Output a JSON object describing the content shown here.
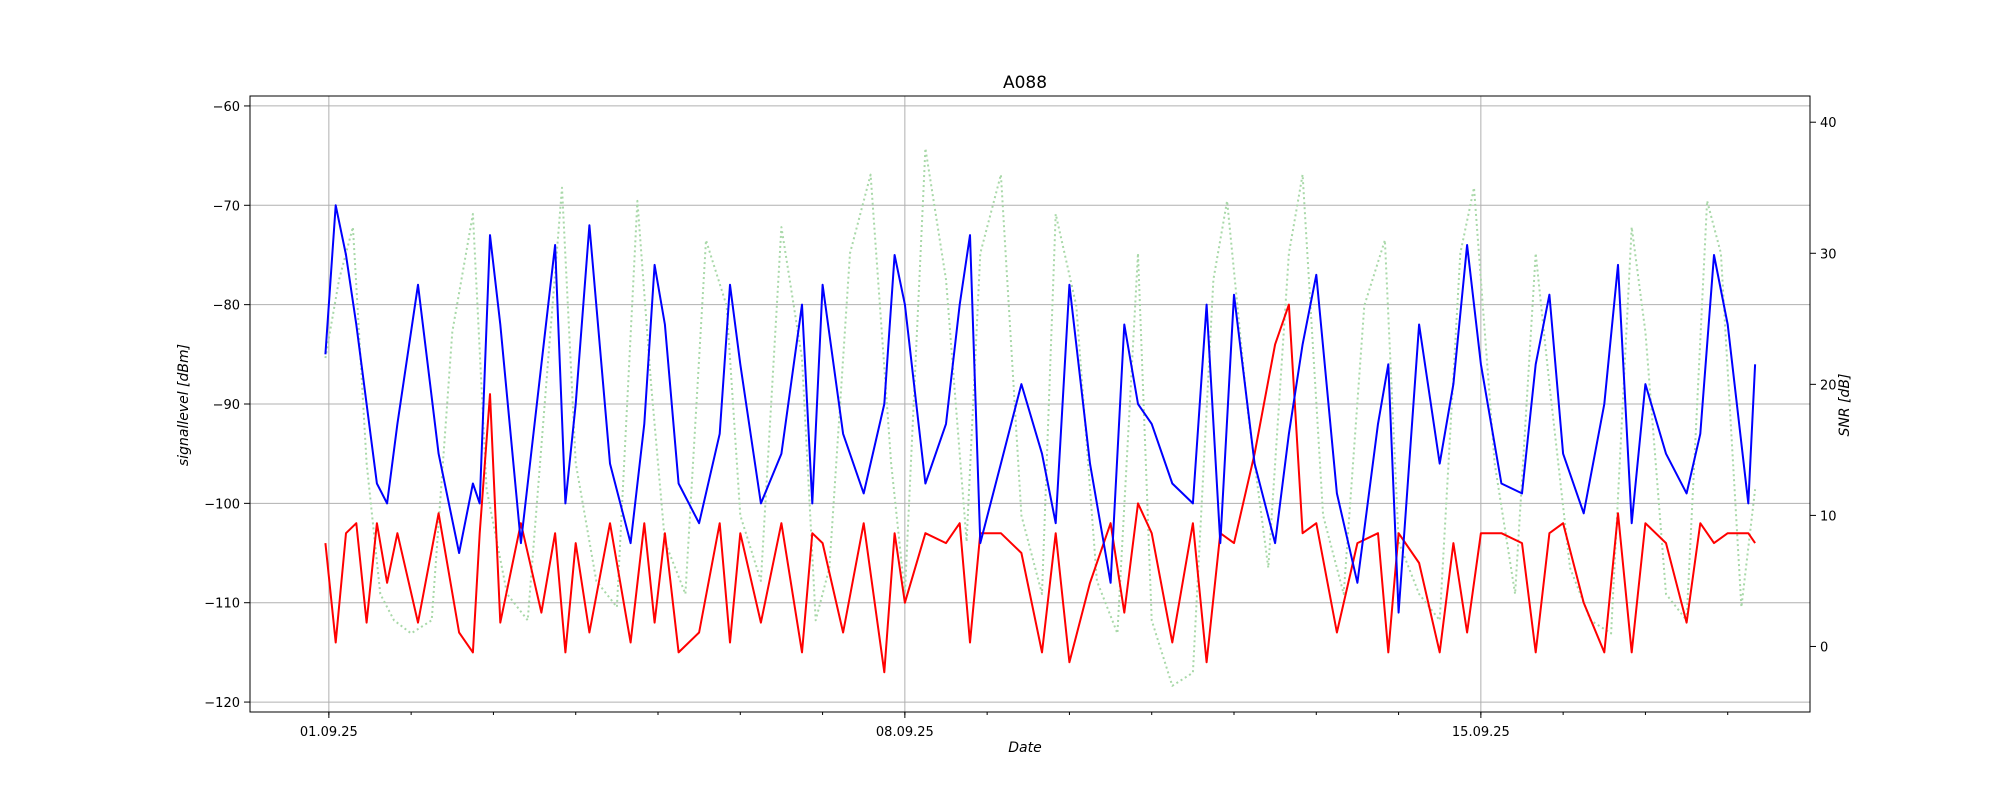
{
  "chart_data": {
    "type": "line",
    "title": "A088",
    "xlabel": "Date",
    "ylabel": "signallevel [dBm]",
    "y2label": "SNR [dB]",
    "x_ticks": [
      "01.09.25",
      "08.09.25",
      "15.09.25"
    ],
    "xlim": [
      "2025-08-31T01:00",
      "2025-09-19T00:00"
    ],
    "ylim": [
      -121,
      -59
    ],
    "y_ticks": [
      -60,
      -70,
      -80,
      -90,
      -100,
      -110,
      -120
    ],
    "y2lim": [
      -5,
      42
    ],
    "y2_ticks": [
      40,
      30,
      20,
      10,
      0
    ],
    "grid": true,
    "series": [
      {
        "axis": "left",
        "color": "#0000ff",
        "style": "solid",
        "x": [
          "2025-08-31T23:00",
          "2025-09-01T02:00",
          "2025-09-01T05:00",
          "2025-09-01T08:00",
          "2025-09-01T11:00",
          "2025-09-01T14:00",
          "2025-09-01T17:00",
          "2025-09-01T20:00",
          "2025-09-02T02:00",
          "2025-09-02T08:00",
          "2025-09-02T14:00",
          "2025-09-02T18:00",
          "2025-09-02T20:00",
          "2025-09-02T23:00",
          "2025-09-03T02:00",
          "2025-09-03T08:00",
          "2025-09-03T14:00",
          "2025-09-03T18:00",
          "2025-09-03T21:00",
          "2025-09-04T00:00",
          "2025-09-04T04:00",
          "2025-09-04T10:00",
          "2025-09-04T16:00",
          "2025-09-04T20:00",
          "2025-09-04T23:00",
          "2025-09-05T02:00",
          "2025-09-05T06:00",
          "2025-09-05T12:00",
          "2025-09-05T18:00",
          "2025-09-05T21:00",
          "2025-09-06T00:00",
          "2025-09-06T06:00",
          "2025-09-06T12:00",
          "2025-09-06T18:00",
          "2025-09-06T21:00",
          "2025-09-07T00:00",
          "2025-09-07T06:00",
          "2025-09-07T12:00",
          "2025-09-07T18:00",
          "2025-09-07T21:00",
          "2025-09-08T00:00",
          "2025-09-08T06:00",
          "2025-09-08T12:00",
          "2025-09-08T16:00",
          "2025-09-08T19:00",
          "2025-09-08T22:00",
          "2025-09-09T04:00",
          "2025-09-09T10:00",
          "2025-09-09T16:00",
          "2025-09-09T20:00",
          "2025-09-10T00:00",
          "2025-09-10T06:00",
          "2025-09-10T12:00",
          "2025-09-10T16:00",
          "2025-09-10T20:00",
          "2025-09-11T00:00",
          "2025-09-11T06:00",
          "2025-09-11T12:00",
          "2025-09-11T16:00",
          "2025-09-11T20:00",
          "2025-09-12T00:00",
          "2025-09-12T06:00",
          "2025-09-12T12:00",
          "2025-09-12T16:00",
          "2025-09-12T20:00",
          "2025-09-13T00:00",
          "2025-09-13T06:00",
          "2025-09-13T12:00",
          "2025-09-13T18:00",
          "2025-09-13T21:00",
          "2025-09-14T00:00",
          "2025-09-14T06:00",
          "2025-09-14T12:00",
          "2025-09-14T16:00",
          "2025-09-14T20:00",
          "2025-09-15T00:00",
          "2025-09-15T06:00",
          "2025-09-15T12:00",
          "2025-09-15T16:00",
          "2025-09-15T20:00",
          "2025-09-16T00:00",
          "2025-09-16T06:00",
          "2025-09-16T12:00",
          "2025-09-16T16:00",
          "2025-09-16T20:00",
          "2025-09-17T00:00",
          "2025-09-17T06:00",
          "2025-09-17T12:00",
          "2025-09-17T16:00",
          "2025-09-17T20:00",
          "2025-09-18T00:00",
          "2025-09-18T06:00",
          "2025-09-18T08:00"
        ],
        "y": [
          -85,
          -70,
          -75,
          -82,
          -90,
          -98,
          -100,
          -92,
          -78,
          -95,
          -105,
          -98,
          -100,
          -73,
          -82,
          -104,
          -86,
          -74,
          -100,
          -90,
          -72,
          -96,
          -104,
          -92,
          -76,
          -82,
          -98,
          -102,
          -93,
          -78,
          -86,
          -100,
          -95,
          -80,
          -100,
          -78,
          -93,
          -99,
          -90,
          -75,
          -80,
          -98,
          -92,
          -80,
          -73,
          -104,
          -96,
          -88,
          -95,
          -102,
          -78,
          -96,
          -108,
          -82,
          -90,
          -92,
          -98,
          -100,
          -80,
          -104,
          -79,
          -96,
          -104,
          -93,
          -84,
          -77,
          -99,
          -108,
          -92,
          -86,
          -111,
          -82,
          -96,
          -88,
          -74,
          -86,
          -98,
          -99,
          -86,
          -79,
          -95,
          -101,
          -90,
          -76,
          -102,
          -88,
          -95,
          -99,
          -93,
          -75,
          -82,
          -100,
          -86
        ]
      },
      {
        "axis": "left",
        "color": "#ff0000",
        "style": "solid",
        "x": [
          "2025-08-31T23:00",
          "2025-09-01T02:00",
          "2025-09-01T05:00",
          "2025-09-01T08:00",
          "2025-09-01T11:00",
          "2025-09-01T14:00",
          "2025-09-01T17:00",
          "2025-09-01T20:00",
          "2025-09-02T02:00",
          "2025-09-02T08:00",
          "2025-09-02T14:00",
          "2025-09-02T18:00",
          "2025-09-02T20:00",
          "2025-09-02T23:00",
          "2025-09-03T02:00",
          "2025-09-03T08:00",
          "2025-09-03T14:00",
          "2025-09-03T18:00",
          "2025-09-03T21:00",
          "2025-09-04T00:00",
          "2025-09-04T04:00",
          "2025-09-04T10:00",
          "2025-09-04T16:00",
          "2025-09-04T20:00",
          "2025-09-04T23:00",
          "2025-09-05T02:00",
          "2025-09-05T06:00",
          "2025-09-05T12:00",
          "2025-09-05T18:00",
          "2025-09-05T21:00",
          "2025-09-06T00:00",
          "2025-09-06T06:00",
          "2025-09-06T12:00",
          "2025-09-06T18:00",
          "2025-09-06T21:00",
          "2025-09-07T00:00",
          "2025-09-07T06:00",
          "2025-09-07T12:00",
          "2025-09-07T18:00",
          "2025-09-07T21:00",
          "2025-09-08T00:00",
          "2025-09-08T06:00",
          "2025-09-08T12:00",
          "2025-09-08T16:00",
          "2025-09-08T19:00",
          "2025-09-08T22:00",
          "2025-09-09T04:00",
          "2025-09-09T10:00",
          "2025-09-09T16:00",
          "2025-09-09T20:00",
          "2025-09-10T00:00",
          "2025-09-10T06:00",
          "2025-09-10T12:00",
          "2025-09-10T16:00",
          "2025-09-10T20:00",
          "2025-09-11T00:00",
          "2025-09-11T06:00",
          "2025-09-11T12:00",
          "2025-09-11T16:00",
          "2025-09-11T20:00",
          "2025-09-12T00:00",
          "2025-09-12T06:00",
          "2025-09-12T12:00",
          "2025-09-12T16:00",
          "2025-09-12T20:00",
          "2025-09-13T00:00",
          "2025-09-13T06:00",
          "2025-09-13T12:00",
          "2025-09-13T18:00",
          "2025-09-13T21:00",
          "2025-09-14T00:00",
          "2025-09-14T06:00",
          "2025-09-14T12:00",
          "2025-09-14T16:00",
          "2025-09-14T20:00",
          "2025-09-15T00:00",
          "2025-09-15T06:00",
          "2025-09-15T12:00",
          "2025-09-15T16:00",
          "2025-09-15T20:00",
          "2025-09-16T00:00",
          "2025-09-16T06:00",
          "2025-09-16T12:00",
          "2025-09-16T16:00",
          "2025-09-16T20:00",
          "2025-09-17T00:00",
          "2025-09-17T06:00",
          "2025-09-17T12:00",
          "2025-09-17T16:00",
          "2025-09-17T20:00",
          "2025-09-18T00:00",
          "2025-09-18T06:00",
          "2025-09-18T08:00"
        ],
        "y": [
          -104,
          -114,
          -103,
          -102,
          -112,
          -102,
          -108,
          -103,
          -112,
          -101,
          -113,
          -115,
          -103,
          -89,
          -112,
          -102,
          -111,
          -103,
          -115,
          -104,
          -113,
          -102,
          -114,
          -102,
          -112,
          -103,
          -115,
          -113,
          -102,
          -114,
          -103,
          -112,
          -102,
          -115,
          -103,
          -104,
          -113,
          -102,
          -117,
          -103,
          -110,
          -103,
          -104,
          -102,
          -114,
          -103,
          -103,
          -105,
          -115,
          -103,
          -116,
          -108,
          -102,
          -111,
          -100,
          -103,
          -114,
          -102,
          -116,
          -103,
          -104,
          -95,
          -84,
          -80,
          -103,
          -102,
          -113,
          -104,
          -103,
          -115,
          -103,
          -106,
          -115,
          -104,
          -113,
          -103,
          -103,
          -104,
          -115,
          -103,
          -102,
          -110,
          -115,
          -101,
          -115,
          -102,
          -104,
          -112,
          -102,
          -104,
          -103,
          -103,
          -104
        ]
      },
      {
        "axis": "right",
        "color": "#a8d8a8",
        "style": "dotted",
        "x": [
          "2025-08-31T23:00",
          "2025-09-01T03:00",
          "2025-09-01T07:00",
          "2025-09-01T11:00",
          "2025-09-01T15:00",
          "2025-09-01T19:00",
          "2025-09-02T00:00",
          "2025-09-02T06:00",
          "2025-09-02T12:00",
          "2025-09-02T18:00",
          "2025-09-02T22:00",
          "2025-09-03T04:00",
          "2025-09-03T10:00",
          "2025-09-03T16:00",
          "2025-09-03T20:00",
          "2025-09-04T00:00",
          "2025-09-04T06:00",
          "2025-09-04T12:00",
          "2025-09-04T18:00",
          "2025-09-04T22:00",
          "2025-09-05T02:00",
          "2025-09-05T08:00",
          "2025-09-05T14:00",
          "2025-09-05T20:00",
          "2025-09-06T00:00",
          "2025-09-06T06:00",
          "2025-09-06T12:00",
          "2025-09-06T18:00",
          "2025-09-06T22:00",
          "2025-09-07T02:00",
          "2025-09-07T08:00",
          "2025-09-07T14:00",
          "2025-09-07T20:00",
          "2025-09-08T00:00",
          "2025-09-08T06:00",
          "2025-09-08T12:00",
          "2025-09-08T18:00",
          "2025-09-08T22:00",
          "2025-09-09T04:00",
          "2025-09-09T10:00",
          "2025-09-09T16:00",
          "2025-09-09T20:00",
          "2025-09-10T02:00",
          "2025-09-10T08:00",
          "2025-09-10T14:00",
          "2025-09-10T20:00",
          "2025-09-11T00:00",
          "2025-09-11T06:00",
          "2025-09-11T12:00",
          "2025-09-11T18:00",
          "2025-09-11T22:00",
          "2025-09-12T04:00",
          "2025-09-12T10:00",
          "2025-09-12T16:00",
          "2025-09-12T20:00",
          "2025-09-13T02:00",
          "2025-09-13T08:00",
          "2025-09-13T14:00",
          "2025-09-13T20:00",
          "2025-09-14T00:00",
          "2025-09-14T06:00",
          "2025-09-14T12:00",
          "2025-09-14T18:00",
          "2025-09-14T22:00",
          "2025-09-15T04:00",
          "2025-09-15T10:00",
          "2025-09-15T16:00",
          "2025-09-15T20:00",
          "2025-09-16T02:00",
          "2025-09-16T08:00",
          "2025-09-16T14:00",
          "2025-09-16T20:00",
          "2025-09-17T00:00",
          "2025-09-17T06:00",
          "2025-09-17T12:00",
          "2025-09-17T18:00",
          "2025-09-17T22:00",
          "2025-09-18T04:00",
          "2025-09-18T08:00"
        ],
        "y": [
          22,
          28,
          32,
          14,
          4,
          2,
          1,
          2,
          24,
          33,
          12,
          4,
          2,
          22,
          35,
          14,
          5,
          3,
          34,
          20,
          8,
          4,
          31,
          26,
          10,
          5,
          32,
          22,
          2,
          6,
          30,
          36,
          14,
          4,
          38,
          28,
          8,
          30,
          36,
          10,
          4,
          33,
          26,
          5,
          1,
          30,
          2,
          -3,
          -2,
          28,
          34,
          18,
          6,
          30,
          36,
          10,
          4,
          26,
          31,
          8,
          4,
          2,
          30,
          35,
          14,
          4,
          30,
          20,
          6,
          2,
          1,
          32,
          24,
          4,
          2,
          34,
          30,
          3,
          12
        ]
      }
    ]
  }
}
